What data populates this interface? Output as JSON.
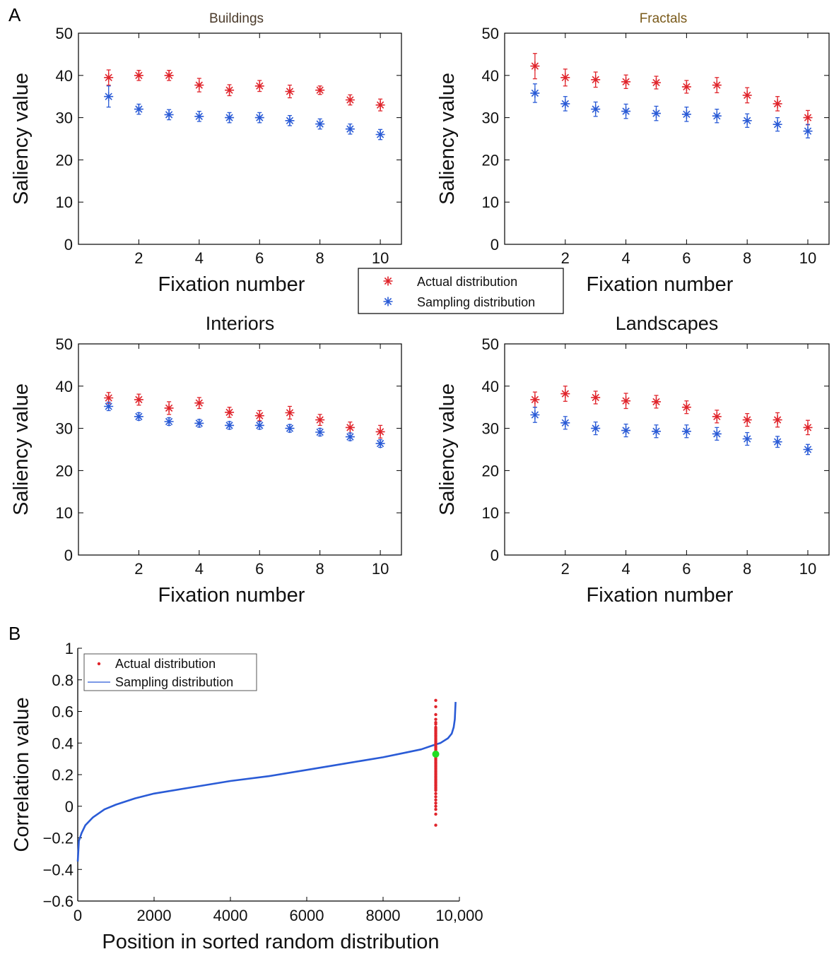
{
  "panel_labels": {
    "a": "A",
    "b": "B"
  },
  "colors": {
    "actual": "#e0242b",
    "sampling": "#2a5bd6",
    "highlight": "#22dd22",
    "axis": "#000000"
  },
  "legend_a": {
    "actual": "Actual distribution",
    "sampling": "Sampling distribution"
  },
  "chart_data": [
    {
      "type": "scatter",
      "title": "Buildings",
      "xlabel": "Fixation number",
      "ylabel": "Saliency value",
      "xlim": [
        0,
        10.7
      ],
      "ylim": [
        0,
        50
      ],
      "xticks": [
        "2",
        "4",
        "6",
        "8",
        "10"
      ],
      "yticks": [
        "0",
        "10",
        "20",
        "30",
        "40",
        "50"
      ],
      "x": [
        1,
        2,
        3,
        4,
        5,
        6,
        7,
        8,
        9,
        10
      ],
      "series": [
        {
          "name": "Actual distribution",
          "values": [
            39.5,
            40.0,
            40.0,
            37.7,
            36.5,
            37.5,
            36.2,
            36.5,
            34.2,
            33.0
          ],
          "errors": [
            1.8,
            1.2,
            1.2,
            1.6,
            1.3,
            1.3,
            1.5,
            1.0,
            1.2,
            1.4
          ]
        },
        {
          "name": "Sampling distribution",
          "values": [
            35.0,
            32.0,
            30.7,
            30.3,
            30.0,
            30.0,
            29.3,
            28.5,
            27.3,
            26.0
          ],
          "errors": [
            2.5,
            1.2,
            1.2,
            1.2,
            1.2,
            1.2,
            1.2,
            1.2,
            1.2,
            1.2
          ]
        }
      ]
    },
    {
      "type": "scatter",
      "title": "Fractals",
      "xlabel": "Fixation number",
      "ylabel": "Saliency value",
      "xlim": [
        0,
        10.7
      ],
      "ylim": [
        0,
        50
      ],
      "xticks": [
        "2",
        "4",
        "6",
        "8",
        "10"
      ],
      "yticks": [
        "0",
        "10",
        "20",
        "30",
        "40",
        "50"
      ],
      "x": [
        1,
        2,
        3,
        4,
        5,
        6,
        7,
        8,
        9,
        10
      ],
      "series": [
        {
          "name": "Actual distribution",
          "values": [
            42.2,
            39.5,
            39.0,
            38.5,
            38.3,
            37.3,
            37.7,
            35.3,
            33.3,
            30.0
          ],
          "errors": [
            3.0,
            2.0,
            1.8,
            1.6,
            1.5,
            1.5,
            1.8,
            1.8,
            1.7,
            1.7
          ]
        },
        {
          "name": "Sampling distribution",
          "values": [
            35.8,
            33.3,
            32.0,
            31.5,
            31.0,
            30.8,
            30.4,
            29.3,
            28.4,
            26.8
          ],
          "errors": [
            2.2,
            1.7,
            1.7,
            1.7,
            1.7,
            1.7,
            1.6,
            1.6,
            1.6,
            1.6
          ]
        }
      ]
    },
    {
      "type": "scatter",
      "title": "Interiors",
      "xlabel": "Fixation number",
      "ylabel": "Saliency value",
      "xlim": [
        0,
        10.7
      ],
      "ylim": [
        0,
        50
      ],
      "xticks": [
        "2",
        "4",
        "6",
        "8",
        "10"
      ],
      "yticks": [
        "0",
        "10",
        "20",
        "30",
        "40",
        "50"
      ],
      "x": [
        1,
        2,
        3,
        4,
        5,
        6,
        7,
        8,
        9,
        10
      ],
      "series": [
        {
          "name": "Actual distribution",
          "values": [
            37.2,
            36.8,
            34.8,
            36.0,
            33.8,
            33.0,
            33.7,
            32.0,
            30.2,
            29.2
          ],
          "errors": [
            1.3,
            1.3,
            1.5,
            1.3,
            1.2,
            1.2,
            1.5,
            1.3,
            1.3,
            1.5
          ]
        },
        {
          "name": "Sampling distribution",
          "values": [
            35.2,
            32.8,
            31.6,
            31.2,
            30.7,
            30.7,
            30.0,
            29.1,
            28.0,
            26.4
          ],
          "errors": [
            1.0,
            0.9,
            0.9,
            0.9,
            0.9,
            0.9,
            0.9,
            0.9,
            0.9,
            0.9
          ]
        }
      ]
    },
    {
      "type": "scatter",
      "title": "Landscapes",
      "xlabel": "Fixation number",
      "ylabel": "Saliency value",
      "xlim": [
        0,
        10.7
      ],
      "ylim": [
        0,
        50
      ],
      "xticks": [
        "2",
        "4",
        "6",
        "8",
        "10"
      ],
      "yticks": [
        "0",
        "10",
        "20",
        "30",
        "40",
        "50"
      ],
      "x": [
        1,
        2,
        3,
        4,
        5,
        6,
        7,
        8,
        9,
        10
      ],
      "series": [
        {
          "name": "Actual distribution",
          "values": [
            36.8,
            38.2,
            37.3,
            36.5,
            36.3,
            35.0,
            32.8,
            32.0,
            32.0,
            30.2
          ],
          "errors": [
            1.8,
            1.8,
            1.5,
            1.8,
            1.5,
            1.5,
            1.5,
            1.5,
            1.7,
            1.7
          ]
        },
        {
          "name": "Sampling distribution",
          "values": [
            33.2,
            31.3,
            30.0,
            29.5,
            29.3,
            29.3,
            28.7,
            27.5,
            26.8,
            25.0
          ],
          "errors": [
            1.8,
            1.5,
            1.5,
            1.5,
            1.5,
            1.5,
            1.5,
            1.5,
            1.3,
            1.2
          ]
        }
      ]
    },
    {
      "type": "line",
      "title": "",
      "xlabel": "Position in sorted random distribution",
      "ylabel": "Correlation value",
      "xlim": [
        0,
        10000
      ],
      "ylim": [
        -0.6,
        1
      ],
      "xticks": [
        "0",
        "2000",
        "4000",
        "6000",
        "8000",
        "10,000"
      ],
      "yticks": [
        "−0.6",
        "−0.4",
        "−0.2",
        "0",
        "0.2",
        "0.4",
        "0.6",
        "0.8",
        "1"
      ],
      "legend": [
        "Actual distribution",
        "Sampling distribution"
      ],
      "sampling_curve": {
        "x": [
          0,
          30,
          100,
          200,
          400,
          700,
          1000,
          1500,
          2000,
          3000,
          4000,
          5000,
          6000,
          7000,
          8000,
          8600,
          9000,
          9300,
          9500,
          9700,
          9800,
          9850,
          9880,
          9900
        ],
        "y": [
          -0.35,
          -0.22,
          -0.17,
          -0.12,
          -0.07,
          -0.02,
          0.01,
          0.05,
          0.08,
          0.12,
          0.16,
          0.19,
          0.23,
          0.27,
          0.31,
          0.34,
          0.36,
          0.385,
          0.4,
          0.43,
          0.46,
          0.5,
          0.55,
          0.66
        ]
      },
      "actual_points": {
        "x": 9380,
        "y": [
          0.67,
          0.63,
          0.58,
          0.55,
          0.53,
          0.52,
          0.5,
          0.49,
          0.48,
          0.47,
          0.46,
          0.45,
          0.44,
          0.43,
          0.42,
          0.41,
          0.4,
          0.39,
          0.38,
          0.37,
          0.36,
          0.35,
          0.34,
          0.33,
          0.32,
          0.31,
          0.3,
          0.29,
          0.28,
          0.27,
          0.26,
          0.25,
          0.24,
          0.23,
          0.22,
          0.21,
          0.2,
          0.19,
          0.18,
          0.17,
          0.16,
          0.15,
          0.14,
          0.13,
          0.12,
          0.11,
          0.1,
          0.08,
          0.06,
          0.04,
          0.02,
          0.0,
          -0.02,
          -0.05,
          -0.12
        ]
      },
      "highlight_point": {
        "x": 9380,
        "y": 0.33
      }
    }
  ]
}
